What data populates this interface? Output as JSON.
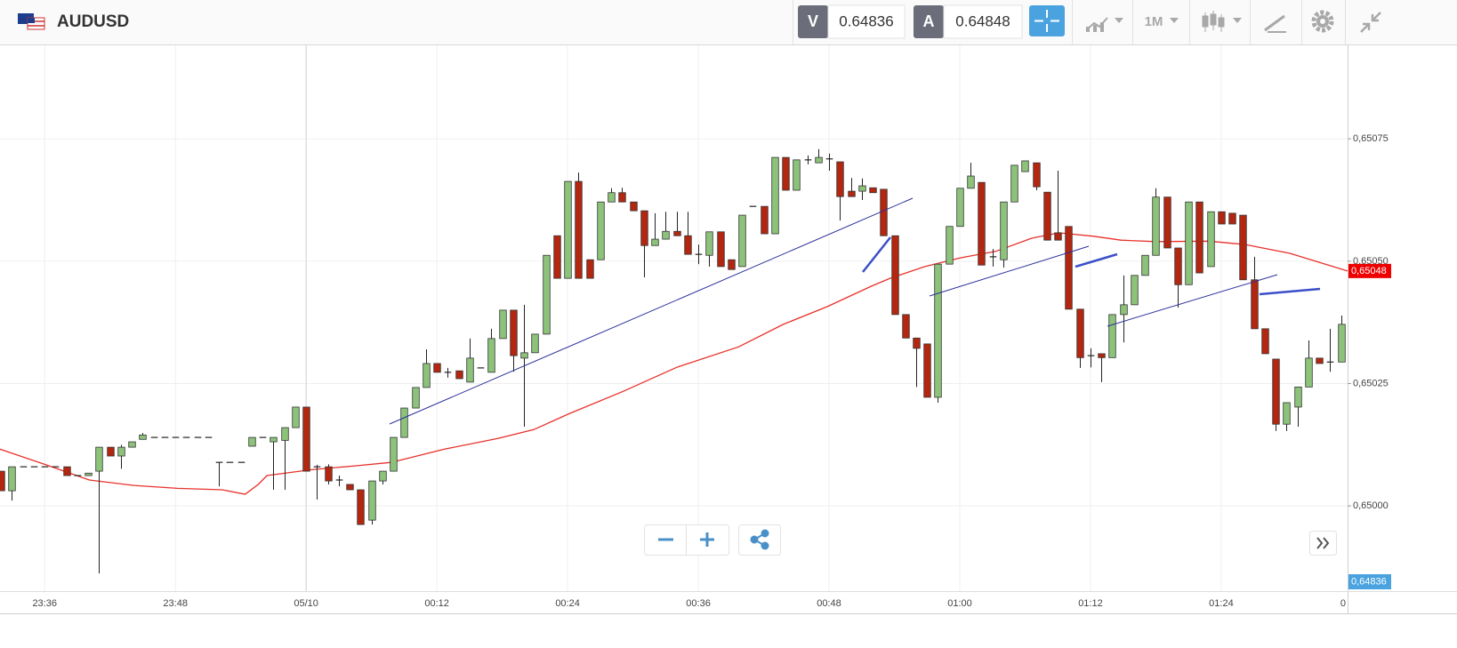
{
  "header": {
    "symbol": "AUDUSD",
    "bid_label": "V",
    "bid": 0.64836,
    "ask_label": "A",
    "ask": 0.64848,
    "timeframe": "1M"
  },
  "chart_data": {
    "type": "candlestick",
    "up_color": "#8cc27a",
    "down_color": "#b3260f",
    "grid": true,
    "xlim": [
      -28.1,
      95.6
    ],
    "ylim": [
      0.649826,
      0.650941
    ],
    "xticks": [
      {
        "value": -24,
        "label": "23:36"
      },
      {
        "value": -12,
        "label": "23:48"
      },
      {
        "value": 0,
        "label": "05/10"
      },
      {
        "value": 12,
        "label": "00:12"
      },
      {
        "value": 24,
        "label": "00:24"
      },
      {
        "value": 36,
        "label": "00:36"
      },
      {
        "value": 48,
        "label": "00:48"
      },
      {
        "value": 60,
        "label": "01:00"
      },
      {
        "value": 72,
        "label": "01:12"
      },
      {
        "value": 84,
        "label": "01:24"
      },
      {
        "value": 96,
        "label": "0"
      }
    ],
    "yticks": [
      {
        "value": 0.65,
        "label": "0,65000"
      },
      {
        "value": 0.65025,
        "label": "0,65025"
      },
      {
        "value": 0.6505,
        "label": "0,65050"
      },
      {
        "value": 0.65075,
        "label": "0,65075"
      }
    ],
    "x": [
      -28,
      -27,
      -26,
      -25,
      -24,
      -23,
      -22,
      -21,
      -20,
      -19,
      -18,
      -17,
      -16,
      -15,
      -14,
      -13,
      -12,
      -11,
      -10,
      -9,
      -8,
      -7,
      -6,
      -5,
      -4,
      -3,
      -2,
      -1,
      0,
      1,
      2,
      3,
      4,
      5,
      6,
      7,
      8,
      9,
      10,
      11,
      12,
      13,
      14,
      15,
      16,
      17,
      18,
      19,
      20,
      21,
      22,
      23,
      24,
      25,
      26,
      27,
      28,
      29,
      30,
      31,
      32,
      33,
      34,
      35,
      36,
      37,
      38,
      39,
      40,
      41,
      42,
      43,
      44,
      45,
      46,
      47,
      48,
      49,
      50,
      51,
      52,
      53,
      54,
      55,
      56,
      57,
      58,
      59,
      60,
      61,
      62,
      63,
      64,
      65,
      66,
      67,
      68,
      69,
      70,
      71,
      72,
      73,
      74,
      75,
      76,
      77,
      78,
      79,
      80,
      81,
      82,
      83,
      84,
      85,
      86,
      87,
      88,
      89,
      90,
      91,
      92,
      93,
      94,
      95
    ],
    "open": [
      0.650071,
      0.650031,
      0.65008,
      0.65008,
      0.65008,
      0.65008,
      0.65008,
      0.650062,
      0.650062,
      0.650071,
      0.65012,
      0.650102,
      0.65012,
      0.650136,
      0.65014,
      0.65014,
      0.65014,
      0.65014,
      0.65014,
      0.65014,
      0.650089,
      0.650089,
      0.650089,
      0.650122,
      0.65014,
      0.650131,
      0.650134,
      0.65016,
      0.650202,
      0.65008,
      0.65008,
      0.650053,
      0.650044,
      0.650033,
      0.649971,
      0.650051,
      0.650071,
      0.65014,
      0.6502,
      0.650242,
      0.650291,
      0.650273,
      0.650276,
      0.650253,
      0.650282,
      0.650273,
      0.650342,
      0.6504,
      0.650302,
      0.650313,
      0.650351,
      0.650552,
      0.650465,
      0.650663,
      0.650503,
      0.650503,
      0.650621,
      0.65064,
      0.650621,
      0.650603,
      0.650532,
      0.650545,
      0.650561,
      0.650552,
      0.650514,
      0.650512,
      0.65056,
      0.650503,
      0.650489,
      0.650612,
      0.650612,
      0.650556,
      0.650712,
      0.650645,
      0.650707,
      0.650701,
      0.650709,
      0.650703,
      0.650643,
      0.650643,
      0.65065,
      0.650647,
      0.650552,
      0.650391,
      0.650343,
      0.650331,
      0.650222,
      0.650494,
      0.650571,
      0.650649,
      0.650661,
      0.650509,
      0.650503,
      0.650621,
      0.650683,
      0.650701,
      0.650641,
      0.650558,
      0.650571,
      0.650402,
      0.650307,
      0.650311,
      0.650303,
      0.650391,
      0.650411,
      0.650471,
      0.650512,
      0.650631,
      0.650527,
      0.650452,
      0.650621,
      0.650489,
      0.650601,
      0.650598,
      0.650594,
      0.650462,
      0.650362,
      0.6503,
      0.650167,
      0.650202,
      0.650243,
      0.650302,
      0.650294,
      0.650294
    ],
    "high": [
      0.650071,
      0.65008,
      0.65008,
      0.65008,
      0.65008,
      0.65008,
      0.65008,
      0.650062,
      0.650067,
      0.65012,
      0.65012,
      0.650125,
      0.650131,
      0.650149,
      0.65014,
      0.65014,
      0.65014,
      0.65014,
      0.65014,
      0.65014,
      0.650089,
      0.650089,
      0.650089,
      0.65014,
      0.65014,
      0.65014,
      0.65016,
      0.650202,
      0.650202,
      0.650084,
      0.650085,
      0.650062,
      0.650044,
      0.650033,
      0.650051,
      0.650071,
      0.65014,
      0.6502,
      0.650242,
      0.65032,
      0.650291,
      0.650282,
      0.650276,
      0.650342,
      0.650282,
      0.650362,
      0.6504,
      0.6504,
      0.650411,
      0.650351,
      0.650512,
      0.650552,
      0.650663,
      0.650681,
      0.650503,
      0.650621,
      0.650649,
      0.65065,
      0.650621,
      0.650603,
      0.650598,
      0.650601,
      0.650601,
      0.650601,
      0.650534,
      0.65056,
      0.65056,
      0.650503,
      0.650594,
      0.650612,
      0.650612,
      0.650712,
      0.650712,
      0.650707,
      0.650716,
      0.650729,
      0.65072,
      0.650703,
      0.65067,
      0.650669,
      0.65065,
      0.650647,
      0.650552,
      0.650391,
      0.650343,
      0.650331,
      0.650494,
      0.650571,
      0.650649,
      0.650701,
      0.650661,
      0.650525,
      0.650621,
      0.650696,
      0.650705,
      0.650701,
      0.650641,
      0.650685,
      0.650571,
      0.650402,
      0.650322,
      0.650311,
      0.650391,
      0.650471,
      0.650471,
      0.650512,
      0.650649,
      0.650631,
      0.650527,
      0.650621,
      0.650621,
      0.650601,
      0.650601,
      0.650598,
      0.650594,
      0.650509,
      0.650362,
      0.6503,
      0.650211,
      0.650243,
      0.650338,
      0.650302,
      0.650362,
      0.650389
    ],
    "low": [
      0.650031,
      0.650011,
      0.65008,
      0.65008,
      0.65008,
      0.65008,
      0.650062,
      0.650062,
      0.650062,
      0.649862,
      0.650102,
      0.650076,
      0.65012,
      0.650136,
      0.65014,
      0.65014,
      0.65014,
      0.65014,
      0.65014,
      0.65014,
      0.65004,
      0.650089,
      0.650089,
      0.650122,
      0.65014,
      0.650033,
      0.650033,
      0.65016,
      0.650071,
      0.650013,
      0.650044,
      0.65004,
      0.650033,
      0.649962,
      0.649962,
      0.650044,
      0.650071,
      0.65014,
      0.6502,
      0.650242,
      0.650273,
      0.650262,
      0.65026,
      0.650253,
      0.650282,
      0.650273,
      0.650342,
      0.650274,
      0.650162,
      0.650313,
      0.650351,
      0.650465,
      0.650465,
      0.650465,
      0.650465,
      0.650503,
      0.650621,
      0.650621,
      0.650603,
      0.650467,
      0.650532,
      0.650545,
      0.650552,
      0.650514,
      0.650494,
      0.650489,
      0.650489,
      0.650483,
      0.650489,
      0.650612,
      0.650556,
      0.650556,
      0.650645,
      0.650645,
      0.650698,
      0.650701,
      0.650685,
      0.650583,
      0.650632,
      0.650625,
      0.65064,
      0.650552,
      0.650391,
      0.650343,
      0.650243,
      0.650222,
      0.650211,
      0.650494,
      0.650571,
      0.650649,
      0.650492,
      0.650489,
      0.650487,
      0.650621,
      0.650683,
      0.650645,
      0.650543,
      0.650543,
      0.650402,
      0.650282,
      0.650283,
      0.650253,
      0.650303,
      0.650334,
      0.650411,
      0.650471,
      0.650512,
      0.650527,
      0.650405,
      0.650452,
      0.650476,
      0.650489,
      0.650576,
      0.650576,
      0.650462,
      0.650362,
      0.650311,
      0.650153,
      0.650153,
      0.650162,
      0.650243,
      0.650291,
      0.650274,
      0.650294
    ],
    "close": [
      0.650031,
      0.65008,
      0.65008,
      0.65008,
      0.65008,
      0.65008,
      0.650062,
      0.650062,
      0.650067,
      0.65012,
      0.650102,
      0.65012,
      0.650131,
      0.650145,
      0.65014,
      0.65014,
      0.65014,
      0.65014,
      0.65014,
      0.65014,
      0.650089,
      0.650089,
      0.650089,
      0.65014,
      0.65014,
      0.65014,
      0.65016,
      0.650202,
      0.650071,
      0.65008,
      0.650051,
      0.650053,
      0.650033,
      0.649962,
      0.650051,
      0.650071,
      0.65014,
      0.6502,
      0.650242,
      0.650291,
      0.650273,
      0.650273,
      0.65026,
      0.650302,
      0.650282,
      0.650342,
      0.6504,
      0.650307,
      0.650313,
      0.650351,
      0.650512,
      0.650465,
      0.650663,
      0.650465,
      0.650465,
      0.650621,
      0.65064,
      0.650621,
      0.650603,
      0.650532,
      0.650545,
      0.650561,
      0.650552,
      0.650514,
      0.650514,
      0.65056,
      0.650489,
      0.650483,
      0.650594,
      0.650612,
      0.650556,
      0.650712,
      0.650645,
      0.650707,
      0.650707,
      0.650712,
      0.650709,
      0.650632,
      0.650632,
      0.650654,
      0.65064,
      0.650552,
      0.650391,
      0.650343,
      0.650322,
      0.650222,
      0.650494,
      0.650571,
      0.650649,
      0.650674,
      0.650492,
      0.650509,
      0.650621,
      0.650696,
      0.650705,
      0.650652,
      0.650543,
      0.650543,
      0.650402,
      0.650303,
      0.650307,
      0.650303,
      0.650391,
      0.650411,
      0.650471,
      0.650512,
      0.650631,
      0.650527,
      0.650452,
      0.650621,
      0.650476,
      0.650601,
      0.650576,
      0.650576,
      0.650462,
      0.650362,
      0.650311,
      0.650167,
      0.650211,
      0.650243,
      0.650302,
      0.650291,
      0.650294,
      0.650371
    ],
    "overlay": {
      "color": "#e8302a",
      "x": [
        -28.1,
        -24.0,
        -19.9,
        -15.8,
        -11.8,
        -7.7,
        -5.6,
        -4.4,
        -3.6,
        0.5,
        4.6,
        7.8,
        12.7,
        17.6,
        20.9,
        24.2,
        29.1,
        34.0,
        39.7,
        43.8,
        47.8,
        51.9,
        53.6,
        56.8,
        60.1,
        63.3,
        66.6,
        69.1,
        72.3,
        74.8,
        78.0,
        82.9,
        86.2,
        90.3,
        95.6
      ],
      "values": [
        0.650116,
        0.650085,
        0.650053,
        0.650042,
        0.650036,
        0.650033,
        0.650024,
        0.650044,
        0.650062,
        0.650074,
        0.650082,
        0.650089,
        0.650116,
        0.650138,
        0.650156,
        0.650189,
        0.650234,
        0.650283,
        0.650325,
        0.650371,
        0.650407,
        0.650449,
        0.650465,
        0.650489,
        0.650507,
        0.65052,
        0.650547,
        0.650558,
        0.650551,
        0.650543,
        0.65054,
        0.650541,
        0.650534,
        0.650516,
        0.65048
      ]
    },
    "last_price": {
      "value": 0.65048,
      "label": "0,65048",
      "color": "#ee0000"
    },
    "bid_badge": {
      "label": "0,64836",
      "color": "#4aa3df"
    }
  }
}
